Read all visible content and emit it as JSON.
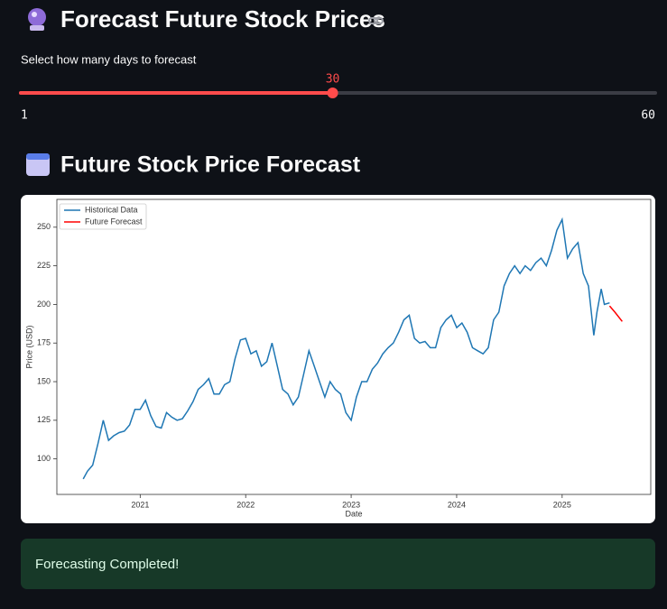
{
  "header": {
    "title": "Forecast Future Stock Prices"
  },
  "slider": {
    "label": "Select how many days to forecast",
    "value": 30,
    "min": 1,
    "max": 60
  },
  "section": {
    "title": "Future Stock Price Forecast"
  },
  "chart_data": {
    "type": "line",
    "xlabel": "Date",
    "ylabel": "Price (USD)",
    "xlim": [
      2020.21,
      2025.84
    ],
    "ylim": [
      77,
      268
    ],
    "xticks": [
      2021,
      2022,
      2023,
      2024,
      2025
    ],
    "yticks": [
      100,
      125,
      150,
      175,
      200,
      225,
      250
    ],
    "legend": "upper left",
    "series": [
      {
        "name": "Historical Data",
        "color": "#1f77b4",
        "x": [
          2020.46,
          2020.5,
          2020.55,
          2020.6,
          2020.65,
          2020.7,
          2020.75,
          2020.8,
          2020.85,
          2020.9,
          2020.95,
          2021.0,
          2021.05,
          2021.1,
          2021.15,
          2021.2,
          2021.25,
          2021.3,
          2021.35,
          2021.4,
          2021.45,
          2021.5,
          2021.55,
          2021.6,
          2021.65,
          2021.7,
          2021.75,
          2021.8,
          2021.85,
          2021.9,
          2021.95,
          2022.0,
          2022.05,
          2022.1,
          2022.15,
          2022.2,
          2022.25,
          2022.3,
          2022.35,
          2022.4,
          2022.45,
          2022.5,
          2022.55,
          2022.6,
          2022.65,
          2022.7,
          2022.75,
          2022.8,
          2022.85,
          2022.9,
          2022.95,
          2023.0,
          2023.05,
          2023.1,
          2023.15,
          2023.2,
          2023.25,
          2023.3,
          2023.35,
          2023.4,
          2023.45,
          2023.5,
          2023.55,
          2023.6,
          2023.65,
          2023.7,
          2023.75,
          2023.8,
          2023.85,
          2023.9,
          2023.95,
          2024.0,
          2024.05,
          2024.1,
          2024.15,
          2024.2,
          2024.25,
          2024.3,
          2024.35,
          2024.4,
          2024.45,
          2024.5,
          2024.55,
          2024.6,
          2024.65,
          2024.7,
          2024.75,
          2024.8,
          2024.85,
          2024.9,
          2024.95,
          2025.0,
          2025.05,
          2025.1,
          2025.15,
          2025.2,
          2025.25,
          2025.3,
          2025.33,
          2025.37,
          2025.4,
          2025.45
        ],
        "values": [
          87,
          92,
          96,
          110,
          125,
          112,
          115,
          117,
          118,
          122,
          132,
          132,
          138,
          128,
          121,
          120,
          130,
          127,
          125,
          126,
          131,
          137,
          145,
          148,
          152,
          142,
          142,
          148,
          150,
          165,
          177,
          178,
          168,
          170,
          160,
          163,
          175,
          160,
          145,
          142,
          135,
          140,
          155,
          170,
          160,
          150,
          140,
          150,
          145,
          142,
          130,
          125,
          140,
          150,
          150,
          158,
          162,
          168,
          172,
          175,
          182,
          190,
          193,
          178,
          175,
          176,
          172,
          172,
          185,
          190,
          193,
          185,
          188,
          182,
          172,
          170,
          168,
          172,
          190,
          195,
          212,
          220,
          225,
          220,
          225,
          222,
          227,
          230,
          225,
          235,
          248,
          255,
          230,
          236,
          240,
          220,
          212,
          180,
          195,
          210,
          200,
          201
        ]
      },
      {
        "name": "Future Forecast",
        "color": "#ff0000",
        "x": [
          2025.45,
          2025.5,
          2025.57
        ],
        "values": [
          199,
          195,
          189
        ]
      }
    ]
  },
  "alert": {
    "text": "Forecasting Completed!"
  }
}
